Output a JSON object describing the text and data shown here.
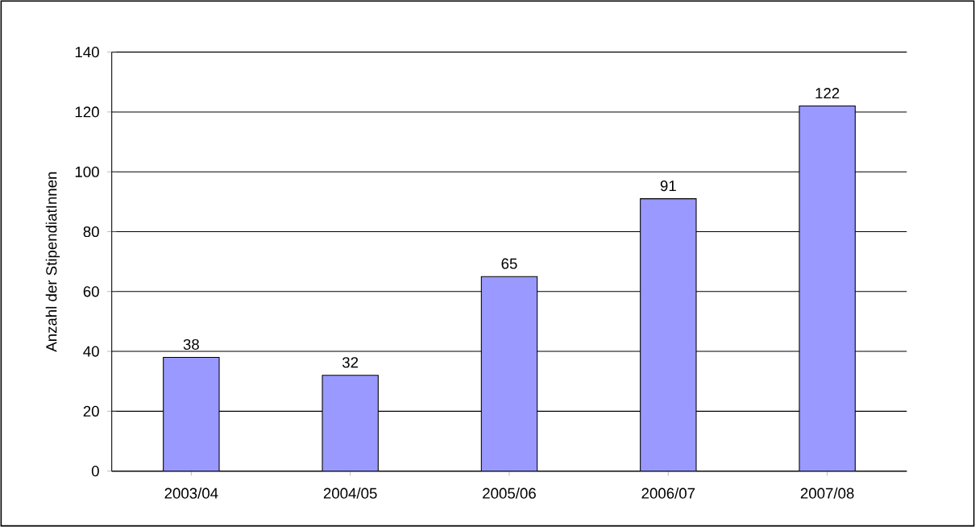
{
  "chart_data": {
    "type": "bar",
    "ylabel": "Anzahl der StipendiatInnen",
    "categories": [
      "2003/04",
      "2004/05",
      "2005/06",
      "2006/07",
      "2007/08"
    ],
    "values": [
      38,
      32,
      65,
      91,
      122
    ],
    "color": "#9999ff",
    "ylim": [
      0,
      140
    ],
    "yticks": [
      0,
      20,
      40,
      60,
      80,
      100,
      120,
      140
    ],
    "grid": "y",
    "data_labels": true
  }
}
